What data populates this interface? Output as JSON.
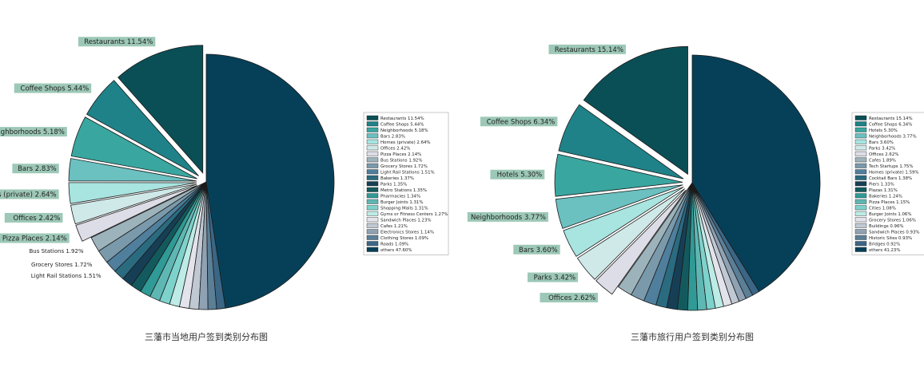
{
  "colors": {
    "palette": [
      "#0a4f56",
      "#1f8288",
      "#3aa6a0",
      "#6bc0c0",
      "#a8e4e0",
      "#cfe9e9",
      "#dcdde6",
      "#9db3bb",
      "#7a9aab",
      "#4f7f9c",
      "#2a6b80",
      "#163f55",
      "#135a5e",
      "#2f9a96",
      "#5fb7b3",
      "#7ed2cc",
      "#bdebe6",
      "#e3e3ec",
      "#c0c9d3",
      "#8fa2b4",
      "#5a7f97",
      "#3b6686"
    ],
    "others": "#064058",
    "label_bg": "#9dc8b8"
  },
  "chart_data": [
    {
      "type": "pie",
      "title": "三藩市当地用户签到类别分布图",
      "slices": [
        {
          "label": "Restaurants",
          "value": 11.54,
          "pct": "11.54%"
        },
        {
          "label": "Coffee Shops",
          "value": 5.44,
          "pct": "5.44%"
        },
        {
          "label": "Neighborhoods",
          "value": 5.18,
          "pct": "5.18%"
        },
        {
          "label": "Bars",
          "value": 2.83,
          "pct": "2.83%"
        },
        {
          "label": "Homes (private)",
          "value": 2.64,
          "pct": "2.64%"
        },
        {
          "label": "Offices",
          "value": 2.42,
          "pct": "2.42%"
        },
        {
          "label": "Pizza Places",
          "value": 2.14,
          "pct": "2.14%"
        },
        {
          "label": "Bus Stations",
          "value": 1.92,
          "pct": "1.92%"
        },
        {
          "label": "Grocery Stores",
          "value": 1.72,
          "pct": "1.72%"
        },
        {
          "label": "Light Rail Stations",
          "value": 1.51,
          "pct": "1.51%"
        },
        {
          "label": "Bakeries",
          "value": 1.37,
          "pct": "1.37%"
        },
        {
          "label": "Parks",
          "value": 1.35,
          "pct": "1.35%"
        },
        {
          "label": "Metro Stations",
          "value": 1.35,
          "pct": "1.35%"
        },
        {
          "label": "Pharmacies",
          "value": 1.34,
          "pct": "1.34%"
        },
        {
          "label": "Burger Joints",
          "value": 1.31,
          "pct": "1.31%"
        },
        {
          "label": "Shopping Malls",
          "value": 1.31,
          "pct": "1.31%"
        },
        {
          "label": "Gyms or Fitness Centers",
          "value": 1.27,
          "pct": "1.27%"
        },
        {
          "label": "Sandwich Places",
          "value": 1.23,
          "pct": "1.23%"
        },
        {
          "label": "Cafes",
          "value": 1.21,
          "pct": "1.21%"
        },
        {
          "label": "Electronics Stores",
          "value": 1.14,
          "pct": "1.14%"
        },
        {
          "label": "Clothing Stores",
          "value": 1.09,
          "pct": "1.09%"
        },
        {
          "label": "Roads",
          "value": 1.09,
          "pct": "1.09%"
        },
        {
          "label": "others",
          "value": 47.6,
          "pct": "47.60%"
        }
      ],
      "explode": [
        true,
        true,
        true,
        true,
        true,
        true,
        true,
        false,
        false,
        false,
        false,
        false,
        false,
        false,
        false,
        false,
        false,
        false,
        false,
        false,
        false,
        false,
        false
      ],
      "labeled_count": 10,
      "boxed_count": 7,
      "legend_placement": "right"
    },
    {
      "type": "pie",
      "title": "三藩市旅行用户签到类别分布图",
      "slices": [
        {
          "label": "Restaurants",
          "value": 15.14,
          "pct": "15.14%"
        },
        {
          "label": "Coffee Shops",
          "value": 6.34,
          "pct": "6.34%"
        },
        {
          "label": "Hotels",
          "value": 5.3,
          "pct": "5.30%"
        },
        {
          "label": "Neighborhoods",
          "value": 3.77,
          "pct": "3.77%"
        },
        {
          "label": "Bars",
          "value": 3.6,
          "pct": "3.60%"
        },
        {
          "label": "Parks",
          "value": 3.42,
          "pct": "3.42%"
        },
        {
          "label": "Offices",
          "value": 2.62,
          "pct": "2.62%"
        },
        {
          "label": "Cafes",
          "value": 1.89,
          "pct": "1.89%"
        },
        {
          "label": "Tech Startups",
          "value": 1.75,
          "pct": "1.75%"
        },
        {
          "label": "Homes (private)",
          "value": 1.59,
          "pct": "1.59%"
        },
        {
          "label": "Cocktail Bars",
          "value": 1.38,
          "pct": "1.38%"
        },
        {
          "label": "Piers",
          "value": 1.33,
          "pct": "1.33%"
        },
        {
          "label": "Plazas",
          "value": 1.31,
          "pct": "1.31%"
        },
        {
          "label": "Bakeries",
          "value": 1.24,
          "pct": "1.24%"
        },
        {
          "label": "Pizza Places",
          "value": 1.15,
          "pct": "1.15%"
        },
        {
          "label": "Cities",
          "value": 1.08,
          "pct": "1.08%"
        },
        {
          "label": "Burger Joints",
          "value": 1.06,
          "pct": "1.06%"
        },
        {
          "label": "Grocery Stores",
          "value": 1.06,
          "pct": "1.06%"
        },
        {
          "label": "Buildings",
          "value": 0.96,
          "pct": "0.96%"
        },
        {
          "label": "Sandwich Places",
          "value": 0.93,
          "pct": "0.93%"
        },
        {
          "label": "Historic Sites",
          "value": 0.93,
          "pct": "0.93%"
        },
        {
          "label": "Bridges",
          "value": 0.92,
          "pct": "0.92%"
        },
        {
          "label": "others",
          "value": 41.23,
          "pct": "41.23%"
        }
      ],
      "explode": [
        true,
        true,
        true,
        true,
        true,
        true,
        true,
        false,
        false,
        false,
        false,
        false,
        false,
        false,
        false,
        false,
        false,
        false,
        false,
        false,
        false,
        false,
        false
      ],
      "labeled_count": 7,
      "boxed_count": 7,
      "legend_placement": "right"
    }
  ]
}
